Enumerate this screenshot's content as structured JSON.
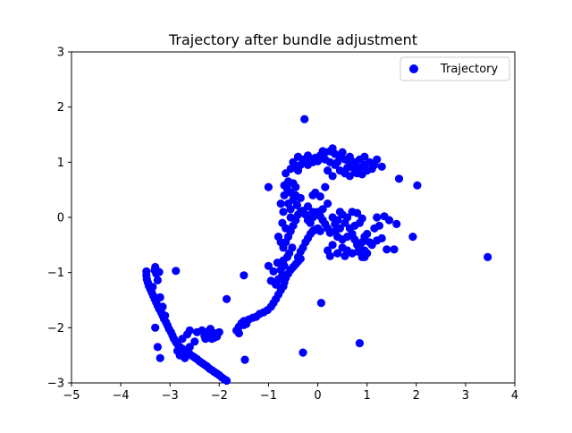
{
  "chart_data": {
    "type": "scatter",
    "title": "Trajectory after bundle adjustment",
    "xlabel": "",
    "ylabel": "",
    "xlim": [
      -5,
      4
    ],
    "ylim": [
      3,
      -3
    ],
    "y_inverted": true,
    "grid": false,
    "legend_position": "top-right",
    "xticks": [
      -5,
      -4,
      -3,
      -2,
      -1,
      0,
      1,
      2,
      3,
      4
    ],
    "yticks": [
      -3,
      -2,
      -1,
      0,
      1,
      2,
      3
    ],
    "series": [
      {
        "name": "Trajectory",
        "color": "#0000ff",
        "marker": "circle",
        "points": [
          [
            -1.85,
            -2.96
          ],
          [
            -1.9,
            -2.93
          ],
          [
            -1.95,
            -2.9
          ],
          [
            -2.0,
            -2.86
          ],
          [
            -2.05,
            -2.83
          ],
          [
            -2.1,
            -2.8
          ],
          [
            -2.15,
            -2.77
          ],
          [
            -2.2,
            -2.74
          ],
          [
            -2.25,
            -2.7
          ],
          [
            -2.3,
            -2.67
          ],
          [
            -2.35,
            -2.64
          ],
          [
            -2.4,
            -2.61
          ],
          [
            -2.45,
            -2.57
          ],
          [
            -2.5,
            -2.54
          ],
          [
            -2.55,
            -2.51
          ],
          [
            -2.6,
            -2.48
          ],
          [
            -2.65,
            -2.45
          ],
          [
            -2.7,
            -2.41
          ],
          [
            -2.75,
            -2.38
          ],
          [
            -2.8,
            -2.35
          ],
          [
            -2.85,
            -2.3
          ],
          [
            -2.88,
            -2.26
          ],
          [
            -2.92,
            -2.2
          ],
          [
            -2.95,
            -2.14
          ],
          [
            -2.98,
            -2.08
          ],
          [
            -3.02,
            -2.02
          ],
          [
            -3.05,
            -1.96
          ],
          [
            -3.08,
            -1.9
          ],
          [
            -3.12,
            -1.84
          ],
          [
            -3.15,
            -1.78
          ],
          [
            -3.18,
            -1.72
          ],
          [
            -3.22,
            -1.66
          ],
          [
            -3.25,
            -1.6
          ],
          [
            -3.28,
            -1.54
          ],
          [
            -3.31,
            -1.48
          ],
          [
            -3.34,
            -1.42
          ],
          [
            -3.37,
            -1.36
          ],
          [
            -3.4,
            -1.3
          ],
          [
            -3.43,
            -1.24
          ],
          [
            -3.45,
            -1.18
          ],
          [
            -3.47,
            -1.12
          ],
          [
            -3.48,
            -1.05
          ],
          [
            -3.48,
            -0.98
          ],
          [
            -3.2,
            -1.45
          ],
          [
            -3.15,
            -1.62
          ],
          [
            -3.1,
            -1.78
          ],
          [
            -3.25,
            -1.14
          ],
          [
            -3.28,
            -1.02
          ],
          [
            -3.31,
            -0.96
          ],
          [
            -3.3,
            -0.9
          ],
          [
            -3.22,
            -0.99
          ],
          [
            -3.35,
            -1.26
          ],
          [
            -2.85,
            -2.42
          ],
          [
            -2.8,
            -2.5
          ],
          [
            -2.7,
            -2.55
          ],
          [
            -2.6,
            -2.35
          ],
          [
            -2.5,
            -2.25
          ],
          [
            -2.75,
            -2.2
          ],
          [
            -2.65,
            -2.12
          ],
          [
            -3.2,
            -2.55
          ],
          [
            -3.25,
            -2.35
          ],
          [
            -3.3,
            -2.0
          ],
          [
            -2.88,
            -0.97
          ],
          [
            -2.3,
            -2.15
          ],
          [
            -2.25,
            -2.08
          ],
          [
            -2.2,
            -2.13
          ],
          [
            -2.15,
            -2.2
          ],
          [
            -2.1,
            -2.1
          ],
          [
            -2.05,
            -2.16
          ],
          [
            -2.0,
            -2.08
          ],
          [
            -2.35,
            -2.05
          ],
          [
            -2.45,
            -2.08
          ],
          [
            -2.6,
            -2.05
          ],
          [
            -2.28,
            -2.2
          ],
          [
            -2.18,
            -2.02
          ],
          [
            -2.1,
            -2.18
          ],
          [
            -1.65,
            -2.05
          ],
          [
            -1.6,
            -1.98
          ],
          [
            -1.55,
            -1.92
          ],
          [
            -1.5,
            -1.88
          ],
          [
            -1.45,
            -1.93
          ],
          [
            -1.4,
            -1.85
          ],
          [
            -1.32,
            -1.82
          ],
          [
            -1.25,
            -1.8
          ],
          [
            -1.18,
            -1.75
          ],
          [
            -1.1,
            -1.72
          ],
          [
            -1.02,
            -1.68
          ],
          [
            -0.95,
            -1.62
          ],
          [
            -0.9,
            -1.55
          ],
          [
            -0.85,
            -1.48
          ],
          [
            -0.8,
            -1.4
          ],
          [
            -0.75,
            -1.32
          ],
          [
            -0.7,
            -1.25
          ],
          [
            -0.68,
            -1.18
          ],
          [
            -0.65,
            -1.1
          ],
          [
            -0.6,
            -1.02
          ],
          [
            -0.55,
            -0.95
          ],
          [
            -0.5,
            -0.9
          ],
          [
            -0.45,
            -0.85
          ],
          [
            -0.4,
            -0.8
          ],
          [
            -0.35,
            -0.75
          ],
          [
            -0.85,
            -1.22
          ],
          [
            -0.8,
            -1.12
          ],
          [
            -0.72,
            -1.05
          ],
          [
            -0.75,
            -0.95
          ],
          [
            -0.68,
            -0.88
          ],
          [
            -0.7,
            -0.78
          ],
          [
            -0.62,
            -0.72
          ],
          [
            -0.58,
            -0.65
          ],
          [
            -0.52,
            -0.55
          ],
          [
            -0.95,
            -1.15
          ],
          [
            -1.0,
            -0.88
          ],
          [
            -0.9,
            -0.98
          ],
          [
            -0.82,
            -0.82
          ],
          [
            -1.5,
            -1.95
          ],
          [
            -1.6,
            -2.1
          ],
          [
            -1.85,
            -1.48
          ],
          [
            -1.5,
            -1.05
          ],
          [
            -1.48,
            -2.58
          ],
          [
            -0.3,
            -2.45
          ],
          [
            0.07,
            -1.55
          ],
          [
            0.85,
            -2.28
          ],
          [
            3.45,
            -0.72
          ],
          [
            -0.4,
            -0.72
          ],
          [
            -0.35,
            -0.62
          ],
          [
            -0.3,
            -0.55
          ],
          [
            -0.25,
            -0.45
          ],
          [
            -0.2,
            -0.38
          ],
          [
            -0.15,
            -0.3
          ],
          [
            -0.1,
            -0.25
          ],
          [
            -0.05,
            -0.22
          ],
          [
            0.0,
            -0.2
          ],
          [
            0.05,
            -0.25
          ],
          [
            -0.7,
            -0.55
          ],
          [
            -0.65,
            -0.45
          ],
          [
            -0.6,
            -0.35
          ],
          [
            -0.55,
            -0.25
          ],
          [
            -0.5,
            -0.15
          ],
          [
            -0.45,
            -0.05
          ],
          [
            -0.4,
            0.05
          ],
          [
            -0.35,
            0.1
          ],
          [
            -0.3,
            0.12
          ],
          [
            -0.25,
            0.05
          ],
          [
            -0.2,
            -0.05
          ],
          [
            -0.15,
            -0.1
          ],
          [
            -0.1,
            0.0
          ],
          [
            -0.05,
            0.08
          ],
          [
            0.0,
            0.1
          ],
          [
            0.05,
            0.02
          ],
          [
            0.1,
            -0.05
          ],
          [
            0.15,
            -0.12
          ],
          [
            0.2,
            -0.2
          ],
          [
            0.25,
            -0.28
          ],
          [
            -0.55,
            0.15
          ],
          [
            -0.6,
            0.25
          ],
          [
            -0.5,
            0.32
          ],
          [
            -0.45,
            0.4
          ],
          [
            -0.55,
            0.45
          ],
          [
            -0.62,
            0.52
          ],
          [
            -0.68,
            0.58
          ],
          [
            -0.6,
            0.65
          ],
          [
            -0.5,
            0.62
          ],
          [
            -0.45,
            0.55
          ],
          [
            -0.68,
            0.4
          ],
          [
            -0.75,
            0.25
          ],
          [
            -0.7,
            0.1
          ],
          [
            -0.72,
            -0.1
          ],
          [
            -0.65,
            -0.2
          ],
          [
            -0.8,
            -0.35
          ],
          [
            -0.75,
            -0.45
          ],
          [
            -0.55,
            0.0
          ],
          [
            -0.42,
            0.22
          ],
          [
            -0.35,
            0.35
          ],
          [
            -1.0,
            0.55
          ],
          [
            -0.1,
            0.4
          ],
          [
            0.15,
            0.55
          ],
          [
            0.05,
            0.38
          ],
          [
            -0.2,
            0.2
          ],
          [
            0.3,
            0.0
          ],
          [
            0.4,
            -0.05
          ],
          [
            0.5,
            0.05
          ],
          [
            0.55,
            -0.1
          ],
          [
            0.45,
            -0.2
          ],
          [
            0.35,
            -0.25
          ],
          [
            0.4,
            -0.35
          ],
          [
            0.5,
            -0.4
          ],
          [
            0.6,
            -0.35
          ],
          [
            0.7,
            -0.3
          ],
          [
            0.75,
            -0.4
          ],
          [
            0.8,
            -0.5
          ],
          [
            0.85,
            -0.55
          ],
          [
            0.9,
            -0.45
          ],
          [
            0.95,
            -0.35
          ],
          [
            1.0,
            -0.3
          ],
          [
            1.05,
            -0.45
          ],
          [
            0.95,
            -0.6
          ],
          [
            0.9,
            -0.72
          ],
          [
            0.82,
            -0.62
          ],
          [
            0.7,
            -0.65
          ],
          [
            0.6,
            -0.6
          ],
          [
            0.55,
            -0.7
          ],
          [
            0.5,
            -0.55
          ],
          [
            0.4,
            -0.65
          ],
          [
            0.65,
            -0.2
          ],
          [
            0.75,
            -0.15
          ],
          [
            0.85,
            -0.1
          ],
          [
            0.6,
            0.0
          ],
          [
            0.7,
            0.1
          ],
          [
            0.95,
            -0.72
          ],
          [
            1.1,
            -0.5
          ],
          [
            1.2,
            -0.42
          ],
          [
            1.3,
            -0.38
          ],
          [
            1.4,
            -0.58
          ],
          [
            1.25,
            -0.15
          ],
          [
            1.15,
            -0.2
          ],
          [
            1.2,
            0.0
          ],
          [
            1.35,
            0.02
          ],
          [
            1.45,
            -0.05
          ],
          [
            1.55,
            -0.58
          ],
          [
            1.6,
            -0.12
          ],
          [
            0.8,
            0.08
          ],
          [
            0.9,
            -0.02
          ],
          [
            1.0,
            -0.65
          ],
          [
            0.2,
            -0.6
          ],
          [
            0.3,
            -0.5
          ],
          [
            0.25,
            -0.7
          ],
          [
            0.35,
            -0.12
          ],
          [
            0.45,
            0.1
          ],
          [
            1.93,
            -0.35
          ],
          [
            -0.1,
            0.1
          ],
          [
            0.1,
            0.15
          ],
          [
            0.2,
            0.25
          ],
          [
            -0.05,
            0.45
          ],
          [
            -0.65,
            0.8
          ],
          [
            -0.55,
            0.88
          ],
          [
            -0.45,
            0.92
          ],
          [
            -0.35,
            0.95
          ],
          [
            -0.25,
            1.0
          ],
          [
            -0.15,
            1.05
          ],
          [
            -0.05,
            1.08
          ],
          [
            0.05,
            1.12
          ],
          [
            0.15,
            1.18
          ],
          [
            0.25,
            1.2
          ],
          [
            0.35,
            1.15
          ],
          [
            0.45,
            1.1
          ],
          [
            0.55,
            1.05
          ],
          [
            0.65,
            1.0
          ],
          [
            0.75,
            1.0
          ],
          [
            0.85,
            1.05
          ],
          [
            0.95,
            1.1
          ],
          [
            0.45,
            0.85
          ],
          [
            0.55,
            0.8
          ],
          [
            0.65,
            0.75
          ],
          [
            0.75,
            0.85
          ],
          [
            0.85,
            0.9
          ],
          [
            0.95,
            0.95
          ],
          [
            1.05,
            1.0
          ],
          [
            1.15,
            0.95
          ],
          [
            0.35,
            0.95
          ],
          [
            0.25,
            1.0
          ],
          [
            0.15,
            1.05
          ],
          [
            0.05,
            1.1
          ],
          [
            -0.3,
            1.05
          ],
          [
            -0.4,
            1.1
          ],
          [
            -0.2,
            1.12
          ],
          [
            0.1,
            1.2
          ],
          [
            0.3,
            1.25
          ],
          [
            0.5,
            1.18
          ],
          [
            0.6,
            0.9
          ],
          [
            0.7,
            0.95
          ],
          [
            0.4,
            1.0
          ],
          [
            0.8,
            0.8
          ],
          [
            1.0,
            0.85
          ],
          [
            1.2,
            1.05
          ],
          [
            1.3,
            0.92
          ],
          [
            -0.5,
            1.0
          ],
          [
            -0.4,
            0.85
          ],
          [
            -0.2,
            0.95
          ],
          [
            0.2,
            0.85
          ],
          [
            0.3,
            0.75
          ],
          [
            -0.1,
            1.0
          ],
          [
            0.0,
            1.02
          ],
          [
            0.65,
            1.1
          ],
          [
            1.65,
            0.7
          ],
          [
            2.02,
            0.58
          ],
          [
            -0.27,
            1.78
          ],
          [
            1.1,
            0.88
          ],
          [
            0.9,
            0.78
          ]
        ]
      }
    ]
  }
}
